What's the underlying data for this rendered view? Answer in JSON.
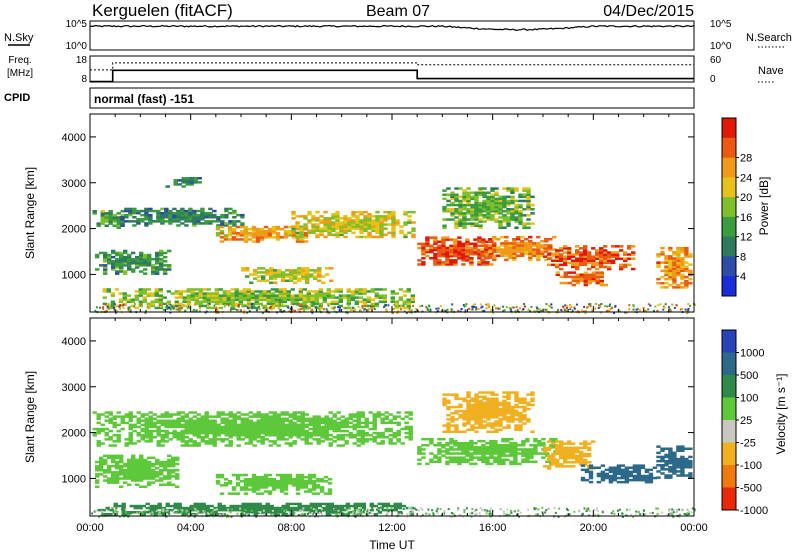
{
  "header": {
    "station": "Kerguelen (fitACF)",
    "beam": "Beam 07",
    "date": "04/Dec/2015"
  },
  "top_panels": {
    "nsky_label": "N.Sky",
    "nsky_ticks": [
      "10^5",
      "10^0"
    ],
    "nsearch_label": "N.Search",
    "nsearch_ticks": [
      "10^5",
      "10^0"
    ],
    "freq_label_1": "Freq.",
    "freq_label_2": "[MHz]",
    "freq_ticks": [
      "18",
      "8"
    ],
    "nave_label": "Nave",
    "nave_ticks": [
      "60",
      "0"
    ],
    "cpid_label": "CPID",
    "cpid_value": "normal (fast) -151"
  },
  "chart_data": [
    {
      "type": "heatmap",
      "name": "power",
      "xlabel": "",
      "ylabel": "Slant Range [km]",
      "xlim": [
        0,
        24
      ],
      "ylim": [
        180,
        4500
      ],
      "y_ticks": [
        "1000",
        "2000",
        "3000",
        "4000"
      ],
      "colorbar": {
        "label": "Power [dB]",
        "ticks": [
          "4",
          "8",
          "12",
          "16",
          "20",
          "24",
          "28"
        ],
        "colors": [
          "#1a2bd8",
          "#2c4ca8",
          "#2f7a5e",
          "#3a9b3f",
          "#7fc02a",
          "#e6c21a",
          "#ef9a18",
          "#ea5a12",
          "#e01808"
        ]
      },
      "bands": [
        {
          "t0": 0.1,
          "t1": 1.3,
          "r0": 2000,
          "r1": 2400,
          "v": 14
        },
        {
          "t0": 0.2,
          "t1": 3.2,
          "r0": 1000,
          "r1": 1500,
          "v": 12
        },
        {
          "t0": 1.2,
          "t1": 6.0,
          "r0": 2050,
          "r1": 2450,
          "v": 11
        },
        {
          "t0": 5.0,
          "t1": 8.5,
          "r0": 1700,
          "r1": 2050,
          "v": 22
        },
        {
          "t0": 8.0,
          "t1": 12.8,
          "r0": 1800,
          "r1": 2350,
          "v": 19
        },
        {
          "t0": 6.0,
          "t1": 9.5,
          "r0": 800,
          "r1": 1150,
          "v": 18
        },
        {
          "t0": 0.5,
          "t1": 12.8,
          "r0": 250,
          "r1": 700,
          "v": 16
        },
        {
          "t0": 13.0,
          "t1": 16.0,
          "r0": 1200,
          "r1": 1800,
          "v": 27
        },
        {
          "t0": 15.5,
          "t1": 18.5,
          "r0": 1300,
          "r1": 1800,
          "v": 24
        },
        {
          "t0": 18.0,
          "t1": 21.5,
          "r0": 1100,
          "r1": 1600,
          "v": 26
        },
        {
          "t0": 18.5,
          "t1": 20.5,
          "r0": 750,
          "r1": 1050,
          "v": 25
        },
        {
          "t0": 22.5,
          "t1": 23.9,
          "r0": 700,
          "r1": 1600,
          "v": 23
        },
        {
          "t0": 14.0,
          "t1": 17.5,
          "r0": 2000,
          "r1": 2900,
          "v": 15
        },
        {
          "t0": 3.0,
          "t1": 4.5,
          "r0": 2900,
          "r1": 3100,
          "v": 10
        }
      ]
    },
    {
      "type": "heatmap",
      "name": "velocity",
      "xlabel": "Time UT",
      "ylabel": "Slant Range [km]",
      "xlim": [
        0,
        24
      ],
      "ylim": [
        180,
        4500
      ],
      "x_ticks": [
        "00:00",
        "04:00",
        "08:00",
        "12:00",
        "16:00",
        "20:00",
        "00:00"
      ],
      "y_ticks": [
        "1000",
        "2000",
        "3000",
        "4000"
      ],
      "colorbar": {
        "label": "Velocity [m s⁻¹]",
        "ticks": [
          "1000",
          "500",
          "100",
          "25",
          "-25",
          "-100",
          "-500",
          "-1000"
        ],
        "colors": [
          "#2842b8",
          "#2d6a8a",
          "#2f8a4a",
          "#5cc83a",
          "#c8c8c0",
          "#f0b020",
          "#ef7a10",
          "#e82808"
        ]
      },
      "bands": [
        {
          "t0": 0.1,
          "t1": 12.8,
          "r0": 1700,
          "r1": 2450,
          "v": 0
        },
        {
          "t0": 0.2,
          "t1": 3.5,
          "r0": 800,
          "r1": 1500,
          "v": 0
        },
        {
          "t0": 5.0,
          "t1": 9.5,
          "r0": 650,
          "r1": 1100,
          "v": 0
        },
        {
          "t0": 0.3,
          "t1": 12.8,
          "r0": 200,
          "r1": 450,
          "v": 60
        },
        {
          "t0": 13.0,
          "t1": 18.5,
          "r0": 1300,
          "r1": 1850,
          "v": 0
        },
        {
          "t0": 14.0,
          "t1": 17.5,
          "r0": 2000,
          "r1": 2900,
          "v": -300
        },
        {
          "t0": 18.0,
          "t1": 20.0,
          "r0": 1200,
          "r1": 1800,
          "v": -400
        },
        {
          "t0": 19.5,
          "t1": 22.5,
          "r0": 900,
          "r1": 1300,
          "v": 150
        },
        {
          "t0": 22.5,
          "t1": 23.9,
          "r0": 1000,
          "r1": 1700,
          "v": 400
        }
      ]
    }
  ],
  "lines": {
    "nsky_level": 0.82,
    "freq_segments": [
      {
        "t0": 0,
        "t1": 0.9,
        "v": 8.2
      },
      {
        "t0": 0.9,
        "t1": 13.0,
        "v": 12.5
      },
      {
        "t0": 13.0,
        "t1": 24,
        "v": 9.3
      }
    ],
    "nave_segments": [
      {
        "t0": 0,
        "t1": 0.9,
        "v": 28
      },
      {
        "t0": 0.9,
        "t1": 13.0,
        "v": 44
      },
      {
        "t0": 13.0,
        "t1": 24,
        "v": 40
      }
    ]
  }
}
